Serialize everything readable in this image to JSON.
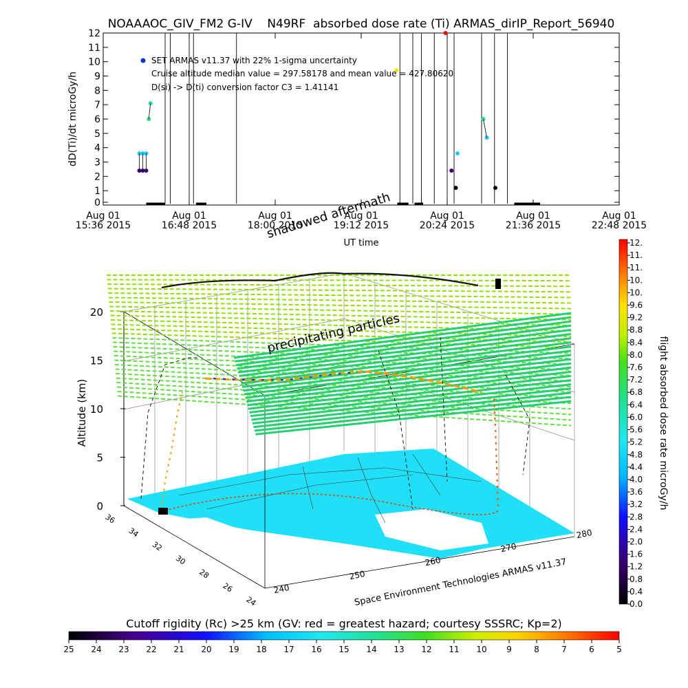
{
  "title": "NOAAAOC_GIV_FM2 G-IV    N49RF  absorbed dose rate (Ti) ARMAS_dirIP_Report_56940",
  "chart_data": [
    {
      "type": "scatter",
      "ylabel": "dD(Ti)/dt microGy/h",
      "xlabel": "UT time",
      "ylim": [
        0,
        12
      ],
      "yticks": [
        "0",
        "1",
        "2",
        "3",
        "4",
        "5",
        "6",
        "7",
        "8",
        "9",
        "10",
        "11",
        "12"
      ],
      "xticks": [
        {
          "top": "Aug 01",
          "bottom": "15:36 2015"
        },
        {
          "top": "Aug 01",
          "bottom": "16:48 2015"
        },
        {
          "top": "Aug 01",
          "bottom": "18:00 2015"
        },
        {
          "top": "Aug 01",
          "bottom": "19:12 2015"
        },
        {
          "top": "Aug 01",
          "bottom": "20:24 2015"
        },
        {
          "top": "Aug 01",
          "bottom": "21:36 2015"
        },
        {
          "top": "Aug 01",
          "bottom": "22:48 2015"
        }
      ],
      "legend": [
        "SET ARMAS v11.37 with 22% 1-sigma uncertainty",
        "Cruise altitude median value = 297.58178 and mean value = 427.80620",
        "D(si) -> D(ti) conversion factor C3 = 1.41141"
      ],
      "series": [
        {
          "points": [
            {
              "x": 0.42,
              "y": 3.6
            },
            {
              "x": 0.46,
              "y": 3.6
            },
            {
              "x": 0.5,
              "y": 3.6
            },
            {
              "x": 0.42,
              "y": 2.4
            },
            {
              "x": 0.46,
              "y": 2.4
            },
            {
              "x": 0.5,
              "y": 2.4
            },
            {
              "x": 0.53,
              "y": 6.0
            },
            {
              "x": 0.55,
              "y": 7.1
            },
            {
              "x": 3.41,
              "y": 9.4
            },
            {
              "x": 3.98,
              "y": 12.0
            },
            {
              "x": 4.05,
              "y": 2.4
            },
            {
              "x": 4.1,
              "y": 1.2
            },
            {
              "x": 4.12,
              "y": 3.6
            },
            {
              "x": 4.42,
              "y": 6.0
            },
            {
              "x": 4.46,
              "y": 4.7
            },
            {
              "x": 4.56,
              "y": 1.2
            }
          ]
        }
      ]
    },
    {
      "type": "scatter",
      "ylabel": "Altitude (km)",
      "zticks": [
        "0",
        "5",
        "10",
        "15",
        "20"
      ],
      "lat_ticks": [
        "36",
        "34",
        "32",
        "30",
        "28",
        "26",
        "24"
      ],
      "lon_ticks": [
        "240",
        "250",
        "260",
        "270",
        "280"
      ],
      "annotations": [
        "shadowed aftermath",
        "precipitating particles"
      ],
      "credit": "Space Environment Technologies ARMAS v11.37"
    }
  ],
  "colorbar_dose": {
    "label": "flight absorbed dose rate microGy/h",
    "ticks": [
      "0.0",
      "0.4",
      "0.8",
      "1.2",
      "1.6",
      "2.0",
      "2.4",
      "2.8",
      "3.2",
      "3.6",
      "4.0",
      "4.4",
      "4.8",
      "5.2",
      "5.6",
      "6.0",
      "6.4",
      "6.8",
      "7.2",
      "7.6",
      "8.0",
      "8.4",
      "8.8",
      "9.2",
      "9.6",
      "10.",
      "10.",
      "11.",
      "11.",
      "12."
    ]
  },
  "colorbar_rc": {
    "label": "Cutoff rigidity (Rc) >25 km (GV: red = greatest hazard; courtesy SSSRC; Kp=2)",
    "ticks": [
      "25",
      "24",
      "23",
      "22",
      "21",
      "20",
      "19",
      "18",
      "17",
      "16",
      "15",
      "14",
      "13",
      "12",
      "11",
      "10",
      "9",
      "8",
      "7",
      "6",
      "5"
    ]
  },
  "colors": {
    "plateau_top": "#8fe000",
    "plateau_bottom": "#22d070",
    "land": "#20e0f8",
    "legend_dot": "#1030d0"
  }
}
